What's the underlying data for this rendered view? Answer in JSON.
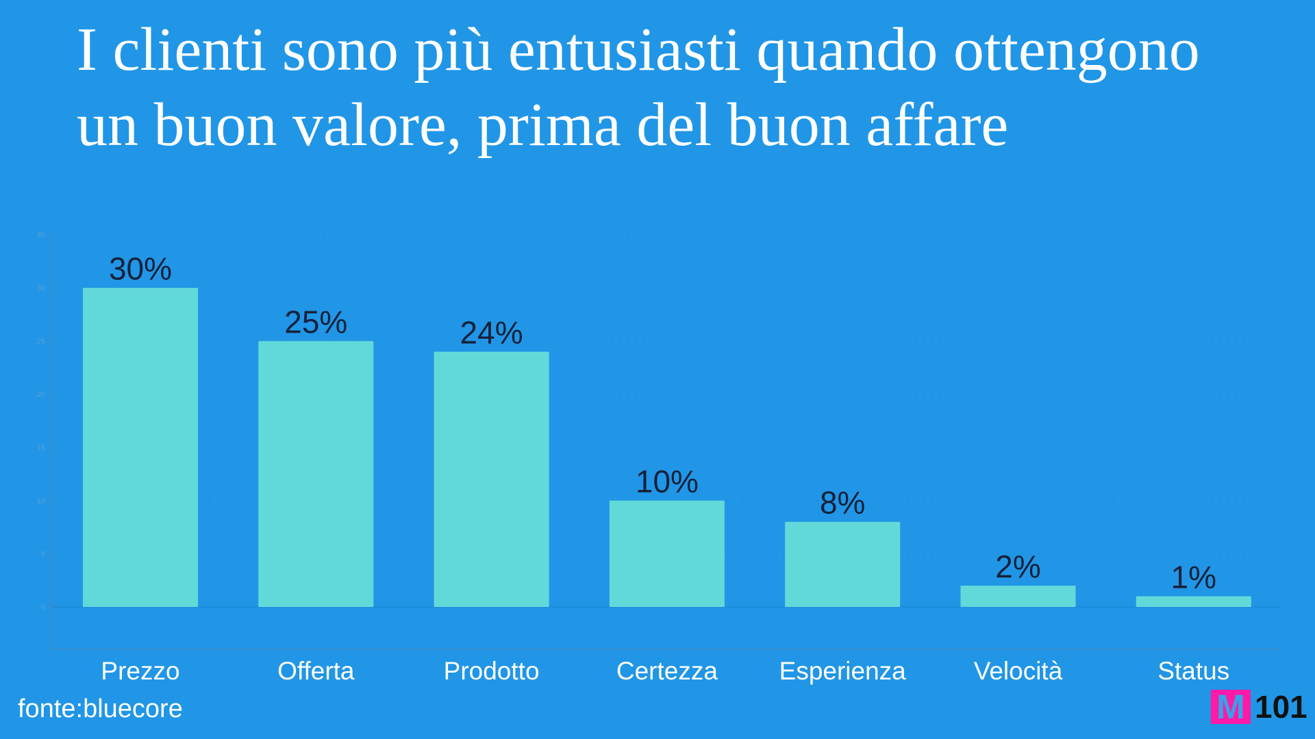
{
  "chart_data": {
    "type": "bar",
    "title": "I clienti sono più entusiasti quando ottengono un buon valore, prima del buon affare",
    "categories": [
      "Prezzo",
      "Offerta",
      "Prodotto",
      "Certezza",
      "Esperienza",
      "Velocità",
      "Status"
    ],
    "values": [
      30,
      25,
      24,
      10,
      8,
      2,
      1
    ],
    "data_labels": [
      "30%",
      "25%",
      "24%",
      "10%",
      "8%",
      "2%",
      "1%"
    ],
    "ylim": [
      0,
      35
    ],
    "yticks": [
      0,
      5,
      10,
      15,
      20,
      25,
      30,
      35
    ],
    "grid": true,
    "bar_color": "#62d9d9",
    "background": "#2196e6"
  },
  "source": "fonte:bluecore",
  "logo": {
    "mark": "M",
    "text": "101"
  }
}
